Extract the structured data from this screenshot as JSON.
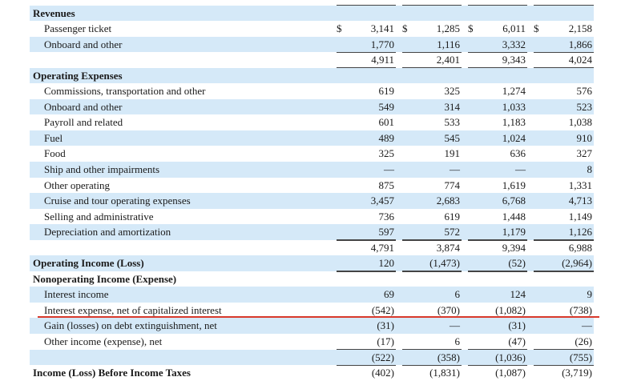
{
  "table": {
    "columns": [
      "col1",
      "col2",
      "col3",
      "col4"
    ],
    "rows": [
      {
        "label": "",
        "style": "header",
        "band": false,
        "values": [
          "",
          "",
          "",
          ""
        ],
        "rule": "ul"
      },
      {
        "label": "Revenues",
        "style": "bold",
        "band": true,
        "values": [
          "",
          "",
          "",
          ""
        ]
      },
      {
        "label": "Passenger ticket",
        "style": "ind",
        "band": false,
        "dollar": true,
        "values": [
          "3,141",
          "1,285",
          "6,011",
          "2,158"
        ]
      },
      {
        "label": "Onboard and other",
        "style": "ind",
        "band": true,
        "values": [
          "1,770",
          "1,116",
          "3,332",
          "1,866"
        ],
        "rule": "ul"
      },
      {
        "label": "",
        "style": "ind",
        "band": false,
        "values": [
          "4,911",
          "2,401",
          "9,343",
          "4,024"
        ],
        "rule": "ul"
      },
      {
        "label": "Operating Expenses",
        "style": "bold",
        "band": true,
        "values": [
          "",
          "",
          "",
          ""
        ]
      },
      {
        "label": "Commissions, transportation and other",
        "style": "ind",
        "band": false,
        "values": [
          "619",
          "325",
          "1,274",
          "576"
        ]
      },
      {
        "label": "Onboard and other",
        "style": "ind",
        "band": true,
        "values": [
          "549",
          "314",
          "1,033",
          "523"
        ]
      },
      {
        "label": "Payroll and related",
        "style": "ind",
        "band": false,
        "values": [
          "601",
          "533",
          "1,183",
          "1,038"
        ]
      },
      {
        "label": "Fuel",
        "style": "ind",
        "band": true,
        "values": [
          "489",
          "545",
          "1,024",
          "910"
        ]
      },
      {
        "label": "Food",
        "style": "ind",
        "band": false,
        "values": [
          "325",
          "191",
          "636",
          "327"
        ]
      },
      {
        "label": "Ship and other impairments",
        "style": "ind",
        "band": true,
        "values": [
          "—",
          "—",
          "—",
          "8"
        ]
      },
      {
        "label": "Other operating",
        "style": "ind",
        "band": false,
        "values": [
          "875",
          "774",
          "1,619",
          "1,331"
        ],
        "rule": "ul"
      },
      {
        "label": "Cruise and tour operating expenses",
        "style": "ind",
        "band": true,
        "values": [
          "3,457",
          "2,683",
          "6,768",
          "4,713"
        ]
      },
      {
        "label": "Selling and administrative",
        "style": "ind",
        "band": false,
        "values": [
          "736",
          "619",
          "1,448",
          "1,149"
        ]
      },
      {
        "label": "Depreciation and amortization",
        "style": "ind",
        "band": true,
        "values": [
          "597",
          "572",
          "1,179",
          "1,126"
        ],
        "rule": "ul"
      },
      {
        "label": "",
        "style": "ind",
        "band": false,
        "values": [
          "4,791",
          "3,874",
          "9,394",
          "6,988"
        ],
        "rule": "ul"
      },
      {
        "label": "Operating Income (Loss)",
        "style": "bold",
        "band": true,
        "values": [
          "120",
          "(1,473)",
          "(52)",
          "(2,964)"
        ],
        "rule": "ul"
      },
      {
        "label": "Nonoperating Income (Expense)",
        "style": "bold",
        "band": false,
        "values": [
          "",
          "",
          "",
          ""
        ]
      },
      {
        "label": "Interest income",
        "style": "ind",
        "band": true,
        "values": [
          "69",
          "6",
          "124",
          "9"
        ]
      },
      {
        "label": "Interest expense, net of capitalized interest",
        "style": "ind",
        "band": false,
        "values": [
          "(542)",
          "(370)",
          "(1,082)",
          "(738)"
        ]
      },
      {
        "label": "Gain (losses) on debt extinguishment, net",
        "style": "ind",
        "band": true,
        "values": [
          "(31)",
          "—",
          "(31)",
          "—"
        ]
      },
      {
        "label": "Other income (expense), net",
        "style": "ind",
        "band": false,
        "values": [
          "(17)",
          "6",
          "(47)",
          "(26)"
        ],
        "rule": "ul"
      },
      {
        "label": "",
        "style": "ind",
        "band": true,
        "values": [
          "(522)",
          "(358)",
          "(1,036)",
          "(755)"
        ],
        "rule": "ul"
      },
      {
        "label": "Income (Loss) Before Income Taxes",
        "style": "bold",
        "band": false,
        "values": [
          "(402)",
          "(1,831)",
          "(1,087)",
          "(3,719)"
        ]
      }
    ],
    "currency_symbol": "$"
  },
  "annotation": {
    "type": "red-underline",
    "target_row": "Interest expense, net of capitalized interest",
    "color": "#d9392b"
  }
}
